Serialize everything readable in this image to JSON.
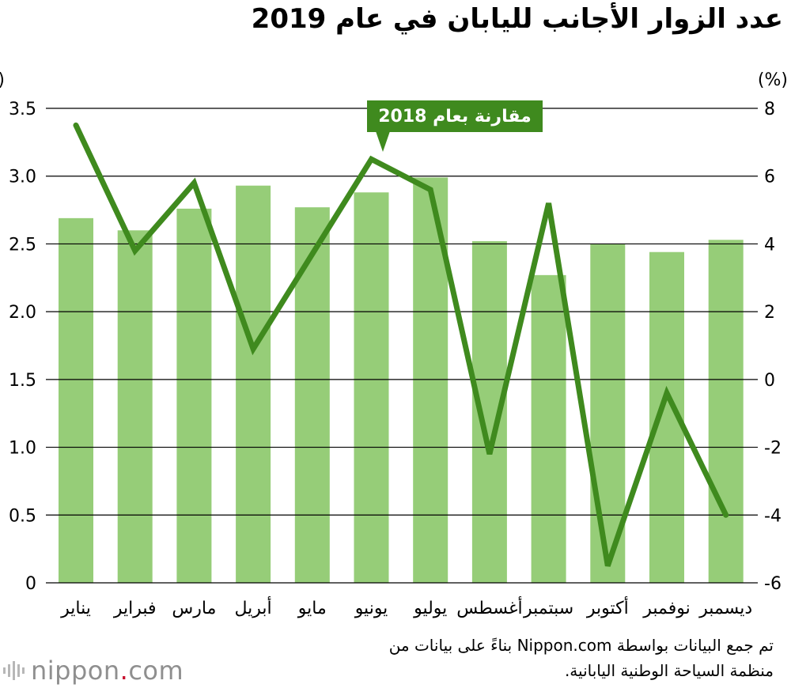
{
  "title": "عدد الزوار الأجانب لليابان في عام 2019",
  "source_note": "تم جمع البيانات بواسطة Nippon.com بناءً على بيانات من منظمة السياحة الوطنية اليابانية.",
  "logo": {
    "text_main": "nippon",
    "text_dot": ".",
    "text_suffix": "com"
  },
  "colors": {
    "bar": "#96cd78",
    "line": "#3f8a1e",
    "callout_bg": "#3f8a1e",
    "grid": "#000000"
  },
  "chart_data": {
    "type": "bar",
    "categories": [
      "يناير",
      "فبراير",
      "مارس",
      "أبريل",
      "مايو",
      "يونيو",
      "يوليو",
      "أغسطس",
      "سبتمبر",
      "أكتوبر",
      "نوفمبر",
      "ديسمبر"
    ],
    "series": [
      {
        "name": "عدد الزوار",
        "type": "bar",
        "axis": "left",
        "values": [
          2.69,
          2.6,
          2.76,
          2.93,
          2.77,
          2.88,
          2.99,
          2.52,
          2.27,
          2.5,
          2.44,
          2.53
        ]
      },
      {
        "name": "مقارنة بعام 2018",
        "type": "line",
        "axis": "right",
        "values": [
          7.5,
          3.8,
          5.8,
          0.9,
          3.7,
          6.5,
          5.6,
          -2.2,
          5.2,
          -5.5,
          -0.4,
          -4.0
        ]
      }
    ],
    "left_axis": {
      "label": "(مليون شخص)",
      "min": 0,
      "max": 3.5,
      "ticks": [
        "0",
        "0.5",
        "1.0",
        "1.5",
        "2.0",
        "2.5",
        "3.0",
        "3.5"
      ]
    },
    "right_axis": {
      "label": "(%)",
      "min": -6,
      "max": 8,
      "ticks": [
        "-6",
        "-4",
        "-2",
        "0",
        "2",
        "4",
        "6",
        "8"
      ]
    },
    "callout": "مقارنة بعام 2018"
  }
}
